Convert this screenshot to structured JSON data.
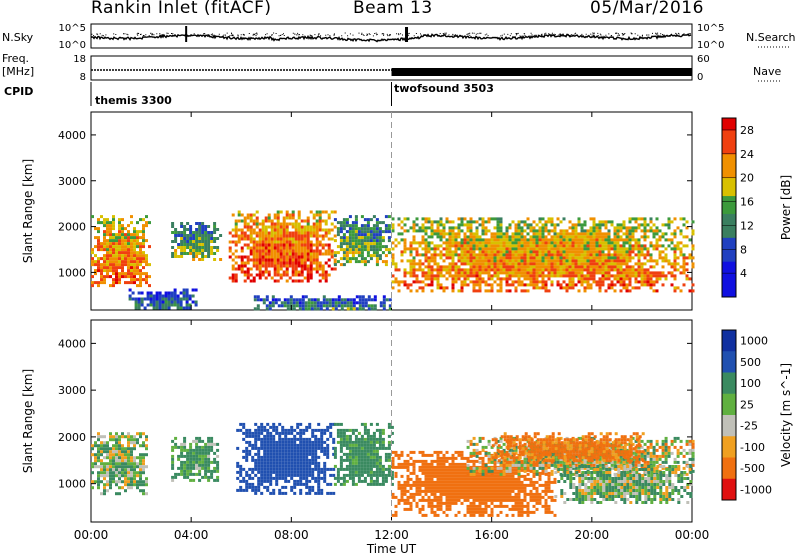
{
  "header": {
    "station": "Rankin Inlet (fitACF)",
    "beam": "Beam 13",
    "date": "05/Mar/2016"
  },
  "left_labels": {
    "nsky": "N.Sky",
    "freq": "Freq.",
    "freq_unit": "[MHz]",
    "cpid": "CPID"
  },
  "right_labels": {
    "nsearch": "N.Search",
    "nave": "Nave"
  },
  "cpid_labels": [
    "themis 3300",
    "twofsound 3503"
  ],
  "chart_data": [
    {
      "type": "line",
      "name": "noise",
      "yscale": "log",
      "left_ticks": [
        "10^5",
        "10^0"
      ],
      "right_ticks": [
        "10^5",
        "10^0"
      ],
      "x_range": [
        "00:00",
        "24:00"
      ],
      "series": [
        {
          "name": "N.Sky",
          "level": "~10^2",
          "spikes_at": [
            "03:50",
            "12:40"
          ]
        },
        {
          "name": "N.Search",
          "style": "dotted",
          "level": "~10^2-10^3"
        }
      ]
    },
    {
      "type": "line",
      "name": "frequency-nave",
      "left_ticks": [
        "18",
        "8"
      ],
      "right_ticks": [
        "60",
        "0"
      ],
      "series": [
        {
          "name": "Freq.",
          "value_mhz": 11
        },
        {
          "name": "Nave",
          "segments": [
            {
              "from": "00:00",
              "to": "12:00",
              "value": "thin"
            },
            {
              "from": "12:00",
              "to": "24:00",
              "value": "dense"
            }
          ]
        }
      ],
      "cpid_change": "12:00"
    },
    {
      "type": "heatmap",
      "name": "power",
      "ylabel": "Slant Range [km]",
      "yticks": [
        1000,
        2000,
        3000,
        4000
      ],
      "ylim": [
        180,
        4500
      ],
      "colorbar": {
        "label": "Power [dB]",
        "ticks": [
          4,
          8,
          12,
          16,
          20,
          24,
          28
        ],
        "range": [
          0,
          30
        ]
      },
      "blobs": [
        {
          "t": [
            0.0,
            2.3
          ],
          "r": [
            700,
            2250
          ],
          "val": 22
        },
        {
          "t": [
            3.2,
            5.2
          ],
          "r": [
            1300,
            2100
          ],
          "val": 14
        },
        {
          "t": [
            5.5,
            9.7
          ],
          "r": [
            800,
            2350
          ],
          "val": 24
        },
        {
          "t": [
            9.7,
            11.9
          ],
          "r": [
            1200,
            2250
          ],
          "val": 14
        },
        {
          "t": [
            12.0,
            24.0
          ],
          "r": [
            600,
            2200
          ],
          "val": 21
        },
        {
          "t": [
            1.5,
            4.2
          ],
          "r": [
            200,
            650
          ],
          "val": 9
        },
        {
          "t": [
            6.5,
            12.0
          ],
          "r": [
            200,
            500
          ],
          "val": 10
        }
      ]
    },
    {
      "type": "heatmap",
      "name": "velocity",
      "ylabel": "Slant Range [km]",
      "yticks": [
        1000,
        2000,
        3000,
        4000
      ],
      "ylim": [
        180,
        4500
      ],
      "xticks": [
        "00:00",
        "04:00",
        "08:00",
        "12:00",
        "16:00",
        "20:00",
        "00:00"
      ],
      "xlabel": "Time UT",
      "colorbar": {
        "label": "Velocity [m s^-1]",
        "ticks": [
          1000,
          500,
          100,
          25,
          -25,
          -100,
          -500,
          -1000
        ]
      },
      "blobs": [
        {
          "t": [
            0.0,
            2.2
          ],
          "r": [
            800,
            2100
          ],
          "val": 60
        },
        {
          "t": [
            3.2,
            5.1
          ],
          "r": [
            1100,
            2000
          ],
          "val": 150
        },
        {
          "t": [
            5.8,
            9.7
          ],
          "r": [
            800,
            2300
          ],
          "val": 700
        },
        {
          "t": [
            9.7,
            12.0
          ],
          "r": [
            1000,
            2300
          ],
          "val": 200
        },
        {
          "t": [
            12.0,
            18.5
          ],
          "r": [
            350,
            1700
          ],
          "val": -300
        },
        {
          "t": [
            15.0,
            24.0
          ],
          "r": [
            1200,
            2000
          ],
          "val": 0
        },
        {
          "t": [
            18.5,
            24.0
          ],
          "r": [
            600,
            1400
          ],
          "val": 80
        },
        {
          "t": [
            16.0,
            22.0
          ],
          "r": [
            1500,
            2100
          ],
          "val": -200
        }
      ]
    }
  ]
}
